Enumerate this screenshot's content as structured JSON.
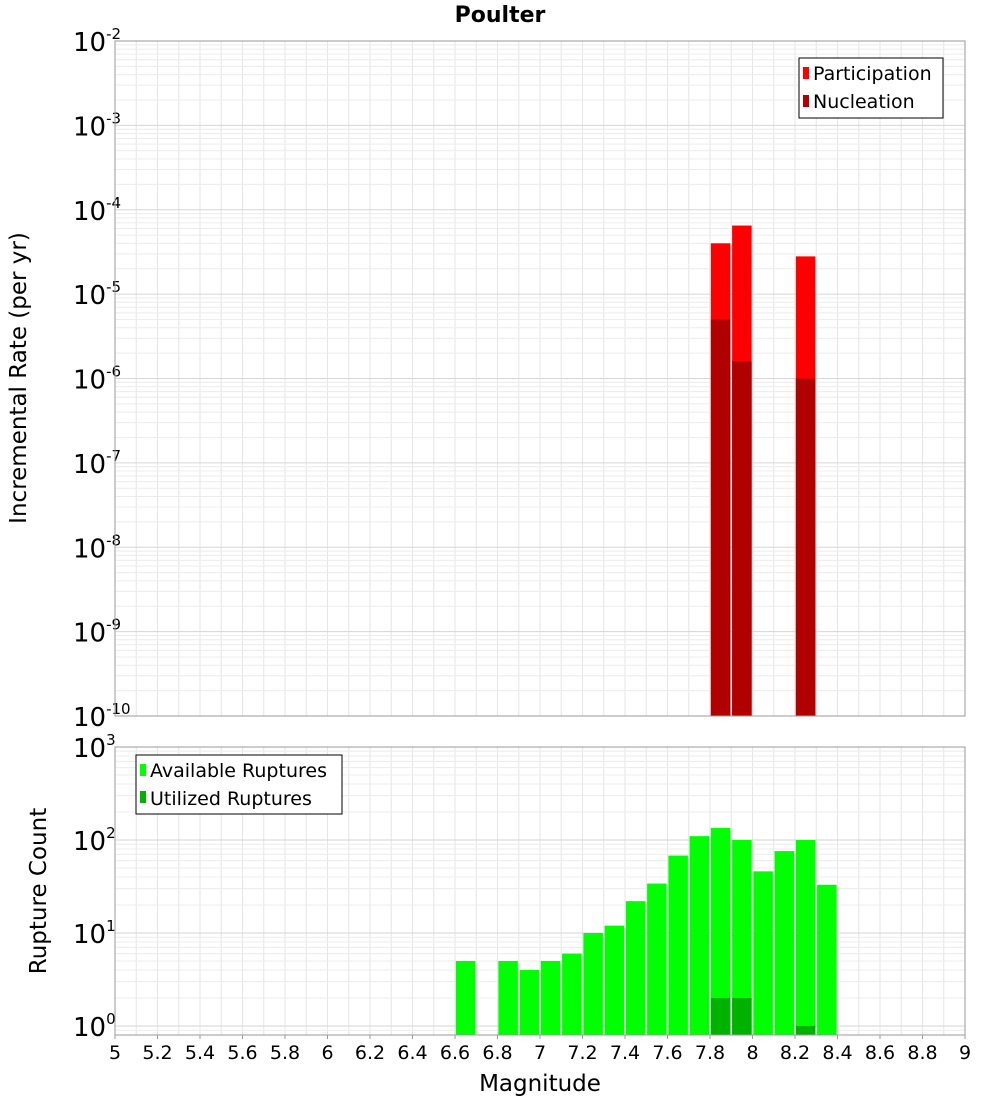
{
  "chart_data": [
    {
      "type": "bar",
      "title": "Poulter",
      "ylabel": "Incremental Rate (per yr)",
      "yscale": "log",
      "ylim": [
        1e-10,
        0.01
      ],
      "y_decade_ticks": [
        {
          "base": "10",
          "exp": "-2"
        },
        {
          "base": "10",
          "exp": "-3"
        },
        {
          "base": "10",
          "exp": "-4"
        },
        {
          "base": "10",
          "exp": "-5"
        },
        {
          "base": "10",
          "exp": "-6"
        },
        {
          "base": "10",
          "exp": "-7"
        },
        {
          "base": "10",
          "exp": "-8"
        },
        {
          "base": "10",
          "exp": "-9"
        },
        {
          "base": "10",
          "exp": "-10"
        }
      ],
      "legend": {
        "position": "top-right",
        "entries": [
          "Participation",
          "Nucleation"
        ]
      },
      "series": [
        {
          "name": "Participation",
          "color": "#ff0000",
          "x": [
            7.85,
            7.95,
            8.25
          ],
          "values": [
            4e-05,
            6.5e-05,
            2.8e-05
          ]
        },
        {
          "name": "Nucleation",
          "color": "#b10000",
          "x": [
            7.85,
            7.95,
            8.25
          ],
          "values": [
            5e-06,
            1.6e-06,
            1e-06
          ]
        }
      ]
    },
    {
      "type": "bar",
      "xlabel": "Magnitude",
      "ylabel": "Rupture Count",
      "yscale": "log",
      "ylim": [
        0.8,
        1000
      ],
      "xlim": [
        5,
        9
      ],
      "x_ticks": [
        "5",
        "5.2",
        "5.4",
        "5.6",
        "5.8",
        "6",
        "6.2",
        "6.4",
        "6.6",
        "6.8",
        "7",
        "7.2",
        "7.4",
        "7.6",
        "7.8",
        "8",
        "8.2",
        "8.4",
        "8.6",
        "8.8",
        "9"
      ],
      "y_decade_ticks": [
        {
          "base": "10",
          "exp": "3"
        },
        {
          "base": "10",
          "exp": "2"
        },
        {
          "base": "10",
          "exp": "1"
        },
        {
          "base": "10",
          "exp": "0"
        }
      ],
      "legend": {
        "position": "top-left",
        "entries": [
          "Available Ruptures",
          "Utilized Ruptures"
        ]
      },
      "series": [
        {
          "name": "Available Ruptures",
          "color": "#00ff00",
          "x": [
            6.65,
            6.85,
            6.95,
            7.05,
            7.15,
            7.25,
            7.35,
            7.45,
            7.55,
            7.65,
            7.75,
            7.85,
            7.95,
            8.05,
            8.15,
            8.25,
            8.35
          ],
          "values": [
            5,
            5,
            4,
            5,
            6,
            10,
            12,
            22,
            34,
            68,
            110,
            135,
            100,
            46,
            76,
            100,
            33
          ]
        },
        {
          "name": "Utilized Ruptures",
          "color": "#00b200",
          "x": [
            7.85,
            7.95,
            8.25
          ],
          "values": [
            2,
            2,
            1
          ]
        }
      ]
    }
  ]
}
